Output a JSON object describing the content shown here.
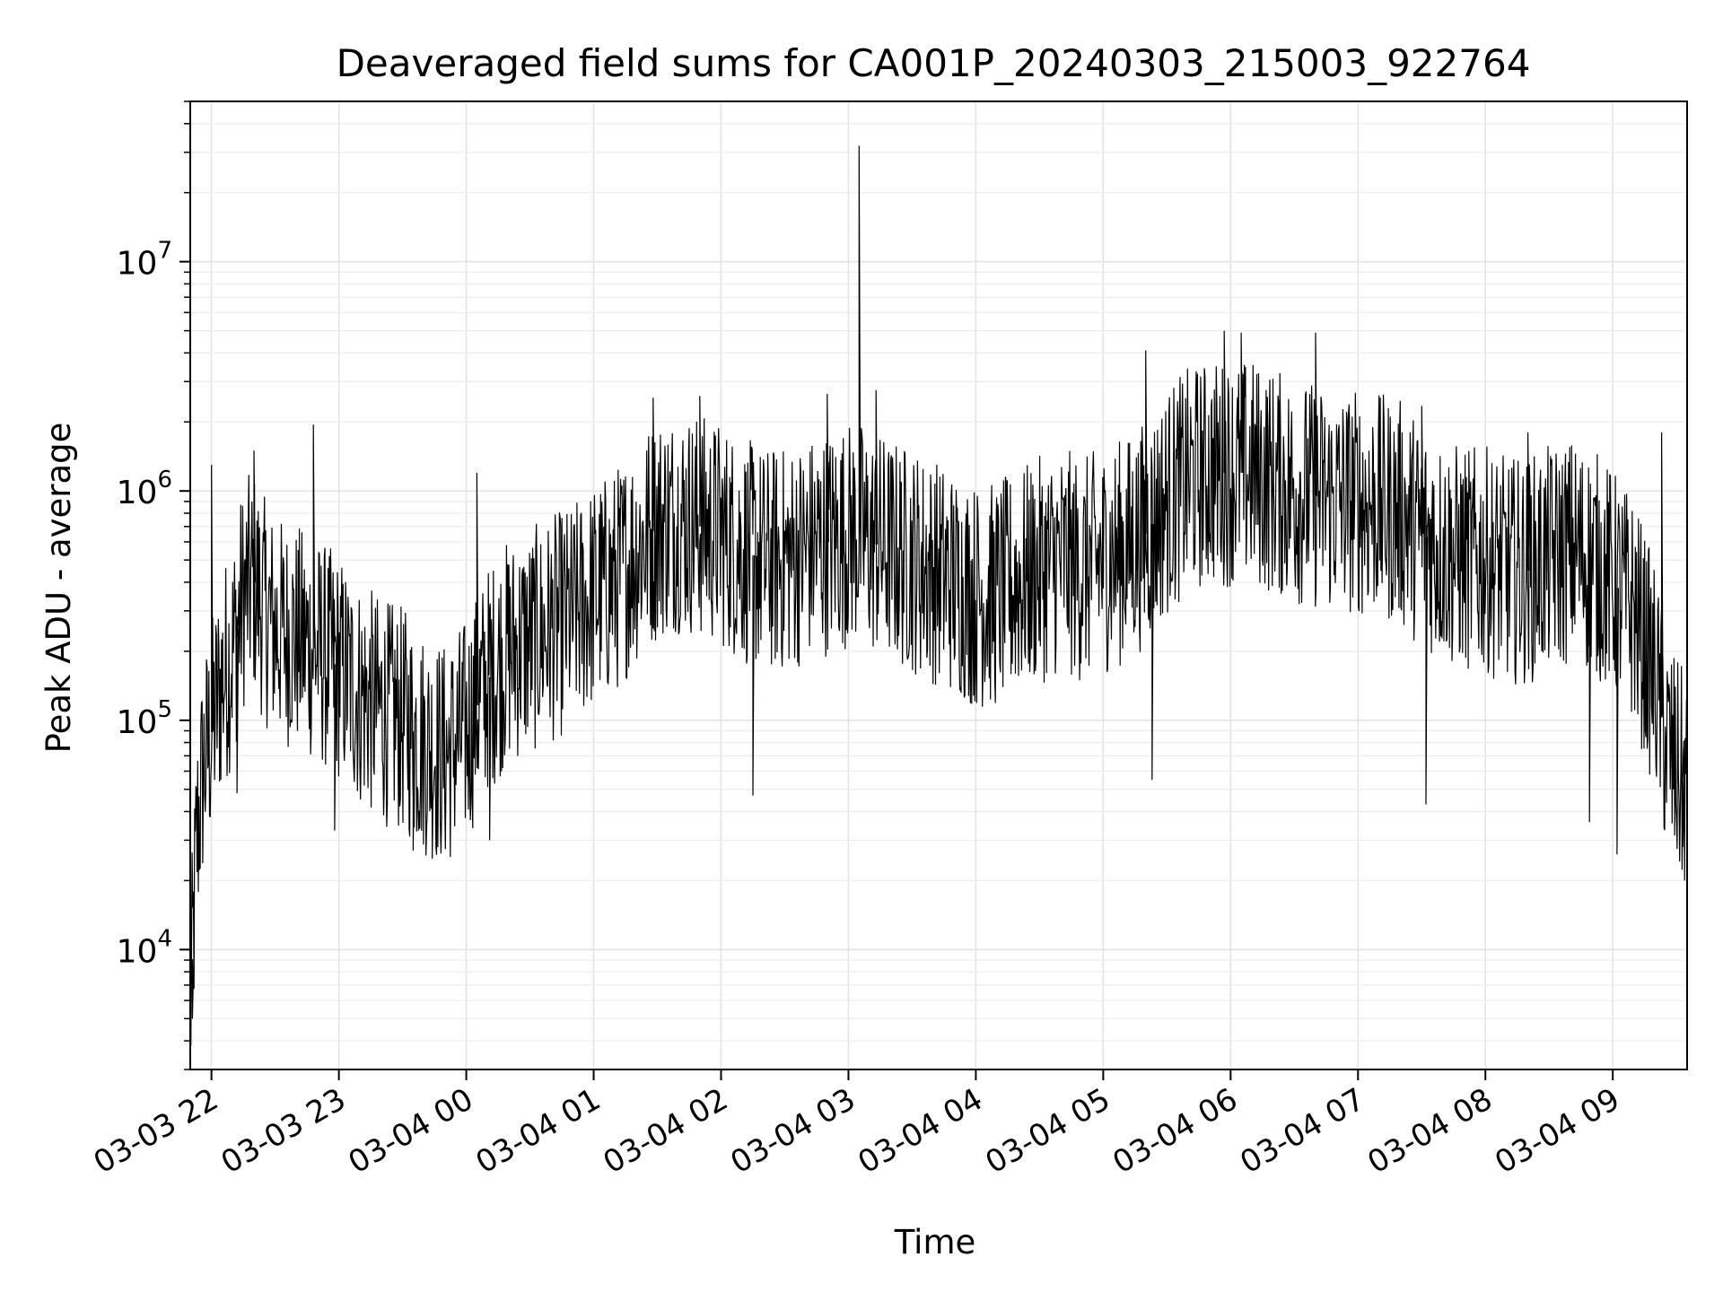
{
  "chart_data": {
    "type": "line",
    "title": "Deaveraged field sums for CA001P_20240303_215003_922764",
    "xlabel": "Time",
    "ylabel": "Peak ADU - average",
    "xlim": [
      "2024-03-03 21:50",
      "2024-03-04 09:35"
    ],
    "ylim": [
      3000,
      50000000
    ],
    "yscale": "log",
    "grid": true,
    "line_color": "#000000",
    "x_ticks": [
      {
        "label": "03-03 22",
        "value": "2024-03-03 22:00"
      },
      {
        "label": "03-03 23",
        "value": "2024-03-03 23:00"
      },
      {
        "label": "03-04 00",
        "value": "2024-03-04 00:00"
      },
      {
        "label": "03-04 01",
        "value": "2024-03-04 01:00"
      },
      {
        "label": "03-04 02",
        "value": "2024-03-04 02:00"
      },
      {
        "label": "03-04 03",
        "value": "2024-03-04 03:00"
      },
      {
        "label": "03-04 04",
        "value": "2024-03-04 04:00"
      },
      {
        "label": "03-04 05",
        "value": "2024-03-04 05:00"
      },
      {
        "label": "03-04 06",
        "value": "2024-03-04 06:00"
      },
      {
        "label": "03-04 07",
        "value": "2024-03-04 07:00"
      },
      {
        "label": "03-04 08",
        "value": "2024-03-04 08:00"
      },
      {
        "label": "03-04 09",
        "value": "2024-03-04 09:00"
      }
    ],
    "y_ticks": [
      {
        "base": "10",
        "exp": "4",
        "value": 10000
      },
      {
        "base": "10",
        "exp": "5",
        "value": 100000
      },
      {
        "base": "10",
        "exp": "6",
        "value": 1000000
      },
      {
        "base": "10",
        "exp": "7",
        "value": 10000000
      }
    ],
    "series": [
      {
        "x": [
          "2024-03-03 21:50",
          "2024-03-03 21:53",
          "2024-03-03 21:56",
          "2024-03-03 21:59",
          "2024-03-03 22:05",
          "2024-03-03 22:10",
          "2024-03-03 22:15",
          "2024-03-03 22:20",
          "2024-03-03 22:25",
          "2024-03-03 22:30",
          "2024-03-03 22:40",
          "2024-03-03 22:50",
          "2024-03-03 23:00",
          "2024-03-03 23:10",
          "2024-03-03 23:20",
          "2024-03-03 23:30",
          "2024-03-03 23:40",
          "2024-03-03 23:50",
          "2024-03-04 00:00",
          "2024-03-04 00:10",
          "2024-03-04 00:20",
          "2024-03-04 00:30",
          "2024-03-04 00:40",
          "2024-03-04 00:50",
          "2024-03-04 01:00",
          "2024-03-04 01:10",
          "2024-03-04 01:20",
          "2024-03-04 01:30",
          "2024-03-04 01:40",
          "2024-03-04 01:50",
          "2024-03-04 02:00",
          "2024-03-04 02:10",
          "2024-03-04 02:20",
          "2024-03-04 02:30",
          "2024-03-04 02:40",
          "2024-03-04 02:50",
          "2024-03-04 03:00",
          "2024-03-04 03:05",
          "2024-03-04 03:10",
          "2024-03-04 03:20",
          "2024-03-04 03:30",
          "2024-03-04 03:40",
          "2024-03-04 03:50",
          "2024-03-04 04:00",
          "2024-03-04 04:10",
          "2024-03-04 04:20",
          "2024-03-04 04:30",
          "2024-03-04 04:40",
          "2024-03-04 04:50",
          "2024-03-04 05:00",
          "2024-03-04 05:10",
          "2024-03-04 05:20",
          "2024-03-04 05:30",
          "2024-03-04 05:40",
          "2024-03-04 05:50",
          "2024-03-04 06:00",
          "2024-03-04 06:10",
          "2024-03-04 06:20",
          "2024-03-04 06:30",
          "2024-03-04 06:40",
          "2024-03-04 06:50",
          "2024-03-04 07:00",
          "2024-03-04 07:10",
          "2024-03-04 07:20",
          "2024-03-04 07:30",
          "2024-03-04 07:40",
          "2024-03-04 07:50",
          "2024-03-04 08:00",
          "2024-03-04 08:10",
          "2024-03-04 08:20",
          "2024-03-04 08:30",
          "2024-03-04 08:40",
          "2024-03-04 08:50",
          "2024-03-04 09:00",
          "2024-03-04 09:10",
          "2024-03-04 09:20",
          "2024-03-04 09:25",
          "2024-03-04 09:30",
          "2024-03-04 09:35"
        ],
        "y": [
          5000,
          30000,
          60000,
          80000,
          150000,
          200000,
          350000,
          400000,
          300000,
          250000,
          230000,
          200000,
          170000,
          130000,
          110000,
          100000,
          80000,
          70000,
          90000,
          150000,
          200000,
          220000,
          250000,
          280000,
          350000,
          400000,
          550000,
          700000,
          750000,
          700000,
          650000,
          550000,
          500000,
          500000,
          550000,
          600000,
          650000,
          650000,
          600000,
          550000,
          500000,
          450000,
          400000,
          350000,
          350000,
          400000,
          450000,
          500000,
          450000,
          500000,
          550000,
          650000,
          900000,
          1100000,
          1200000,
          1200000,
          1200000,
          1100000,
          1000000,
          950000,
          900000,
          900000,
          850000,
          800000,
          650000,
          550000,
          500000,
          500000,
          450000,
          450000,
          500000,
          550000,
          500000,
          400000,
          300000,
          150000,
          80000,
          60000,
          50000
        ],
        "peaks": [
          {
            "x": "2024-03-03 22:00",
            "y": 1300000
          },
          {
            "x": "2024-03-03 22:20",
            "y": 1500000
          },
          {
            "x": "2024-03-03 22:48",
            "y": 1950000
          },
          {
            "x": "2024-03-04 00:05",
            "y": 1200000
          },
          {
            "x": "2024-03-04 01:28",
            "y": 2550000
          },
          {
            "x": "2024-03-04 01:50",
            "y": 2600000
          },
          {
            "x": "2024-03-04 02:50",
            "y": 2650000
          },
          {
            "x": "2024-03-04 03:05",
            "y": 32000000
          },
          {
            "x": "2024-03-04 03:13",
            "y": 2750000
          },
          {
            "x": "2024-03-04 05:20",
            "y": 4100000
          },
          {
            "x": "2024-03-04 05:57",
            "y": 5000000
          },
          {
            "x": "2024-03-04 06:05",
            "y": 4900000
          },
          {
            "x": "2024-03-04 06:40",
            "y": 4900000
          },
          {
            "x": "2024-03-04 07:30",
            "y": 2350000
          },
          {
            "x": "2024-03-04 08:20",
            "y": 1800000
          },
          {
            "x": "2024-03-04 09:23",
            "y": 1800000
          }
        ],
        "dips": [
          {
            "x": "2024-03-03 21:51",
            "y": 5000
          },
          {
            "x": "2024-03-03 22:12",
            "y": 48000
          },
          {
            "x": "2024-03-03 22:58",
            "y": 33000
          },
          {
            "x": "2024-03-03 23:35",
            "y": 27000
          },
          {
            "x": "2024-03-04 00:11",
            "y": 30000
          },
          {
            "x": "2024-03-04 02:15",
            "y": 47000
          },
          {
            "x": "2024-03-04 05:23",
            "y": 55000
          },
          {
            "x": "2024-03-04 07:32",
            "y": 43000
          },
          {
            "x": "2024-03-04 08:49",
            "y": 36000
          },
          {
            "x": "2024-03-04 09:02",
            "y": 26000
          },
          {
            "x": "2024-03-04 09:33",
            "y": 28000
          }
        ]
      }
    ]
  }
}
